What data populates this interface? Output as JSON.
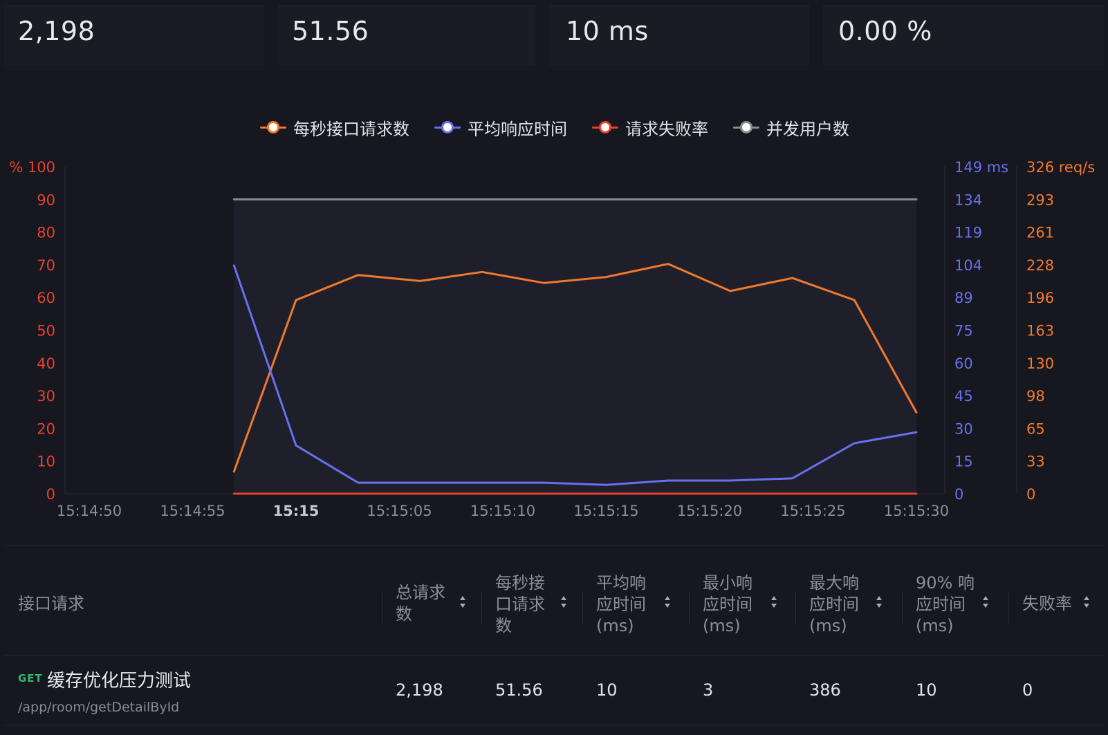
{
  "summary": {
    "total_requests": "2,198",
    "rps": "51.56",
    "avg_response": "10 ms",
    "fail_rate": "0.00 %"
  },
  "legend": [
    {
      "label": "每秒接口请求数",
      "color": "#f07a2c"
    },
    {
      "label": "平均响应时间",
      "color": "#6771ee"
    },
    {
      "label": "请求失败率",
      "color": "#e8412f"
    },
    {
      "label": "并发用户数",
      "color": "#8a8a94"
    }
  ],
  "chart_data": {
    "type": "line",
    "x": [
      "15:14:57",
      "15:15:00",
      "15:15:03",
      "15:15:06",
      "15:15:09",
      "15:15:12",
      "15:15:15",
      "15:15:18",
      "15:15:21",
      "15:15:24",
      "15:15:27",
      "15:15:30"
    ],
    "x_ticks": [
      "15:14:50",
      "15:14:55",
      "15:15",
      "15:15:05",
      "15:15:10",
      "15:15:15",
      "15:15:20",
      "15:15:25",
      "15:15:30"
    ],
    "x_range": [
      "15:14:49",
      "15:15:30"
    ],
    "series": [
      {
        "name": "每秒接口请求数",
        "axis": "rps",
        "color": "#f07a2c",
        "values": [
          22,
          193,
          218,
          212,
          221,
          210,
          216,
          229,
          202,
          215,
          193,
          81
        ]
      },
      {
        "name": "平均响应时间",
        "axis": "ms",
        "color": "#6771ee",
        "values": [
          104,
          22,
          5,
          5,
          5,
          5,
          4,
          6,
          6,
          7,
          23,
          28
        ]
      },
      {
        "name": "请求失败率",
        "axis": "percent",
        "color": "#e8412f",
        "values": [
          0,
          0,
          0,
          0,
          0,
          0,
          0,
          0,
          0,
          0,
          0,
          0
        ]
      },
      {
        "name": "并发用户数",
        "axis": "percent",
        "color": "#8a8a94",
        "values": [
          90,
          90,
          90,
          90,
          90,
          90,
          90,
          90,
          90,
          90,
          90,
          90
        ]
      }
    ],
    "axes": {
      "percent": {
        "ylim": [
          0,
          100
        ],
        "ticks": [
          "% 100",
          "90",
          "80",
          "70",
          "60",
          "50",
          "40",
          "30",
          "20",
          "10",
          "0"
        ],
        "color": "#e8412f"
      },
      "ms": {
        "ylim": [
          0,
          149
        ],
        "ticks": [
          "149 ms",
          "134",
          "119",
          "104",
          "89",
          "75",
          "60",
          "45",
          "30",
          "15",
          "0"
        ],
        "color": "#6771ee"
      },
      "rps": {
        "ylim": [
          0,
          326
        ],
        "ticks": [
          "326 req/s",
          "293",
          "261",
          "228",
          "196",
          "163",
          "130",
          "98",
          "65",
          "33",
          "0"
        ],
        "color": "#f07a2c"
      }
    },
    "grid": false,
    "legend_position": "top-center"
  },
  "table": {
    "headers": [
      "接口请求",
      "总请求数",
      "每秒接口请求数",
      "平均响应时间(ms)",
      "最小响应时间(ms)",
      "最大响应时间(ms)",
      "90% 响应时间(ms)",
      "失败率"
    ],
    "header_lines": [
      [
        "接口请求"
      ],
      [
        "总请求",
        "数"
      ],
      [
        "每秒接",
        "口请求",
        "数"
      ],
      [
        "平均响",
        "应时间",
        "(ms)"
      ],
      [
        "最小响",
        "应时间",
        "(ms)"
      ],
      [
        "最大响",
        "应时间",
        "(ms)"
      ],
      [
        "90% 响",
        "应时间",
        "(ms)"
      ],
      [
        "失败率"
      ]
    ],
    "rows": [
      {
        "method": "GET",
        "name": "缓存优化压力测试",
        "path": "/app/room/getDetailById",
        "cells": [
          "2,198",
          "51.56",
          "10",
          "3",
          "386",
          "10",
          "0"
        ]
      }
    ]
  }
}
